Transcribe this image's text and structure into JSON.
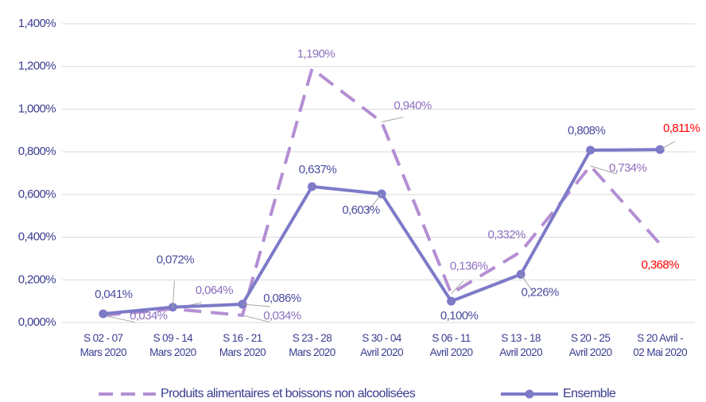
{
  "chart_data": {
    "type": "line",
    "categories": [
      [
        "S 02 - 07",
        "Mars 2020"
      ],
      [
        "S 09 - 14",
        "Mars 2020"
      ],
      [
        "S 16 - 21",
        "Mars 2020"
      ],
      [
        "S 23 - 28",
        "Mars 2020"
      ],
      [
        "S 30 - 04",
        "Avril 2020"
      ],
      [
        "S 06 - 11",
        "Avril 2020"
      ],
      [
        "S 13 - 18",
        "Avril 2020"
      ],
      [
        "S 20 - 25",
        "Avril 2020"
      ],
      [
        "S 20 Avril -",
        "02 Mai 2020"
      ]
    ],
    "series": [
      {
        "name": "Produits alimentaires et boissons non alcoolisées",
        "color": "#b48ed3",
        "dashed": true,
        "values": [
          0.034,
          0.064,
          0.034,
          1.19,
          0.94,
          0.136,
          0.332,
          0.734,
          0.368
        ],
        "value_labels": [
          "0,034%",
          "0,064%",
          "0,034%",
          "1,190%",
          "0,940%",
          "0,136%",
          "0,332%",
          "0,734%",
          "0,368%"
        ],
        "value_label_colors": [
          "#8d6fbf",
          "#8d6fbf",
          "#8d6fbf",
          "#8d6fbf",
          "#8d6fbf",
          "#8d6fbf",
          "#8d6fbf",
          "#8d6fbf",
          "#ff0000"
        ]
      },
      {
        "name": "Ensemble",
        "color": "#7d7ac8",
        "dashed": false,
        "values": [
          0.041,
          0.072,
          0.086,
          0.637,
          0.603,
          0.1,
          0.226,
          0.808,
          0.811
        ],
        "value_labels": [
          "0,041%",
          "0,072%",
          "0,086%",
          "0,637%",
          "0,603%",
          "0,100%",
          "0,226%",
          "0,808%",
          "0,811%"
        ],
        "value_label_colors": [
          "#4a4c9e",
          "#4a4c9e",
          "#4a4c9e",
          "#4a4c9e",
          "#4a4c9e",
          "#4a4c9e",
          "#4a4c9e",
          "#4a4c9e",
          "#ff0000"
        ]
      }
    ],
    "ylim": [
      0,
      1.4
    ],
    "yticks": [
      {
        "value": 0,
        "label": "0,000%"
      },
      {
        "value": 0.2,
        "label": "0,200%"
      },
      {
        "value": 0.4,
        "label": "0,400%"
      },
      {
        "value": 0.6,
        "label": "0,600%"
      },
      {
        "value": 0.8,
        "label": "0,800%"
      },
      {
        "value": 1.0,
        "label": "1,000%"
      },
      {
        "value": 1.2,
        "label": "1,200%"
      },
      {
        "value": 1.4,
        "label": "1,400%"
      }
    ],
    "grid": true,
    "legend": "bottom"
  }
}
